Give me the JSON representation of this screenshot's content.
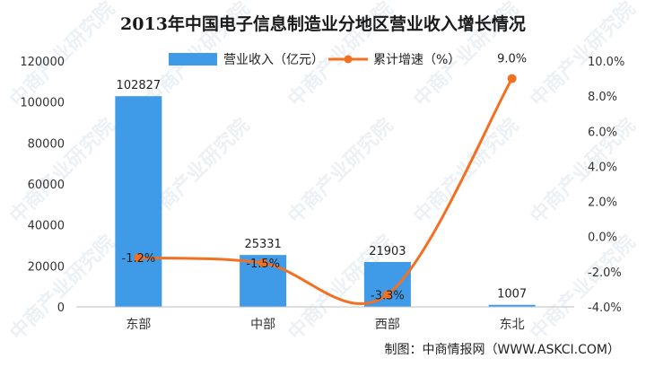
{
  "chart_data": {
    "type": "bar",
    "title": "2013年中国电子信息制造业分地区营业收入增长情况",
    "categories": [
      "东部",
      "中部",
      "西部",
      "东北"
    ],
    "series": [
      {
        "name": "营业收入（亿元）",
        "type": "bar",
        "axis": "left",
        "values": [
          102827,
          25331,
          21903,
          1007
        ],
        "labels": [
          "102827",
          "25331",
          "21903",
          "1007"
        ],
        "color": "#3f9ae8"
      },
      {
        "name": "累计增速（%）",
        "type": "line",
        "axis": "right",
        "values": [
          -1.2,
          -1.5,
          -3.3,
          9.0
        ],
        "labels": [
          "-1.2%",
          "-1.5%",
          "-3.3%",
          "9.0%"
        ],
        "color": "#f37021"
      }
    ],
    "y_left": {
      "lim": [
        0,
        120000
      ],
      "ticks": [
        0,
        20000,
        40000,
        60000,
        80000,
        100000,
        120000
      ],
      "tick_labels": [
        "0",
        "20000",
        "40000",
        "60000",
        "80000",
        "100000",
        "120000"
      ]
    },
    "y_right": {
      "lim": [
        -4.0,
        10.0
      ],
      "ticks": [
        -4,
        -2,
        0,
        2,
        4,
        6,
        8,
        10
      ],
      "tick_labels": [
        "-4.0%",
        "-2.0%",
        "0.0%",
        "2.0%",
        "4.0%",
        "6.0%",
        "8.0%",
        "10.0%"
      ]
    },
    "legend_position": "top",
    "grid": false
  },
  "source": "制图：中商情报网（WWW.ASKCI.COM）",
  "watermark": "中商产业研究院"
}
